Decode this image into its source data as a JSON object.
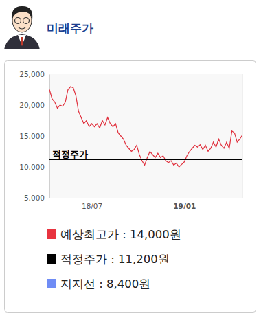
{
  "chart_data": {
    "type": "line",
    "title": "미래주가",
    "categories": [
      null,
      null,
      null,
      null,
      null,
      null,
      null,
      null,
      null,
      null,
      null,
      null,
      null,
      null,
      null,
      null,
      "18/07",
      null,
      null,
      null,
      null,
      null,
      null,
      null,
      null,
      null,
      null,
      null,
      null,
      null,
      null,
      null,
      null,
      null,
      null,
      null,
      null,
      null,
      null,
      null,
      null,
      null,
      null,
      null,
      null,
      null,
      null,
      null,
      null,
      null,
      null,
      "19/01",
      null,
      null,
      null,
      null,
      null,
      null,
      null,
      null,
      null,
      null,
      null,
      null,
      null,
      null,
      null,
      null,
      null,
      null,
      null,
      null,
      null,
      null
    ],
    "series": [
      {
        "color": "#e0303d",
        "values": [
          22500,
          21000,
          20500,
          19500,
          20000,
          19800,
          20500,
          22500,
          23000,
          22800,
          21500,
          19000,
          18000,
          17000,
          17500,
          16500,
          17000,
          16500,
          17000,
          16300,
          17500,
          16800,
          18000,
          17000,
          16500,
          17000,
          15500,
          15000,
          14500,
          13500,
          13000,
          12500,
          12800,
          13500,
          12000,
          11000,
          10300,
          11500,
          12500,
          12000,
          11500,
          12200,
          11500,
          11800,
          11000,
          10700,
          11000,
          10300,
          10600,
          10000,
          10400,
          10800,
          11800,
          12500,
          13000,
          13500,
          13200,
          13600,
          12800,
          13500,
          12500,
          13000,
          14000,
          13200,
          14500,
          13500,
          13000,
          14000,
          13000,
          15800,
          15500,
          14000,
          14500,
          15200
        ]
      }
    ],
    "ylim": [
      5000,
      25000
    ],
    "yticks": [
      {
        "value": 5000,
        "label": "5,000"
      },
      {
        "value": 10000,
        "label": "10,000"
      },
      {
        "value": 15000,
        "label": "15,000"
      },
      {
        "value": 20000,
        "label": "20,000"
      },
      {
        "value": 25000,
        "label": "25,000"
      }
    ],
    "grid": false,
    "annotations": [
      {
        "text": "적정주가",
        "value": 11200,
        "color": "#000000"
      }
    ],
    "legend_items": [
      {
        "label": "예상최고가 : 14,000원",
        "value": 14000,
        "color": "#e8333f"
      },
      {
        "label": "적정주가 : 11,200원",
        "value": 11200,
        "color": "#000000"
      },
      {
        "label": "지지선 : 8,400원",
        "value": 8400,
        "color": "#6f8cf5"
      }
    ]
  }
}
